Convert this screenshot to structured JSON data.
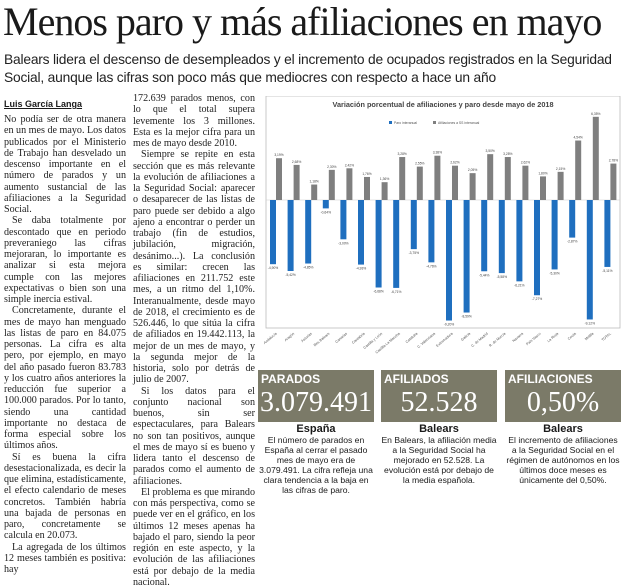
{
  "headline": "Menos paro y más afiliaciones en mayo",
  "subtitle": "Balears lidera el descenso de desempleados y el incremento de ocupados registrados en la Seguridad Social, aunque las cifras son poco más que mediocres con respecto a hace un año",
  "byline": "Luis García Langa",
  "column1": [
    "No podía ser de otra manera en un mes de mayo. Los datos publicados por el Ministerio de Trabajo han desvelado un descenso importante en el número de parados y un aumento sustancial de las afiliaciones a la Seguridad Social.",
    "Se daba totalmente por descontado que en periodo preveraniego las cifras mejoraran, lo importante es analizar si esta mejora cumple con las mejores expectativas o bien son una simple inercia estival.",
    "Concretamente, durante el mes de mayo han menguado las listas de paro en 84.075 personas. La cifra es alta pero, por ejemplo, en mayo del año pasado fueron 83.783 y los cuatro años anteriores la reducción fue superior a 100.000 parados. Por lo tanto, siendo una cantidad importante no destaca de forma especial sobre los últimos años.",
    "Sí es buena la cifra desestacionalizada, es decir la que elimina, estadísticamente, el efecto calendario de meses concretos. También habría una bajada de personas en paro, concretamente se calcula en 20.073.",
    "La agregada de los últimos 12 meses también es positiva: hay"
  ],
  "column2": [
    "172.639 parados menos, con lo que el total supera levemente los 3 millones. Esta es la mejor cifra para un mes de mayo desde 2010.",
    "Siempre se repite en esta sección que es más relevante la evolución de afiliaciones a la Seguridad Social: aparecer o desaparecer de las listas de paro puede ser debido a algo ajeno a encontrar o perder un trabajo (fin de estudios, jubilación, migración, desánimo...). La conclusión es similar: crecen las afiliaciones en 211.752 este mes, a un ritmo del 1,10%. Interanualmente, desde mayo de 2018, el crecimiento es de 526.446, lo que sitúa la cifra de afiliados en 19.442.113, la mejor de un mes de mayo, y la segunda mejor de la historia, solo por detrás de julio de 2007.",
    "Si los datos para el conjunto nacional son buenos, sin ser espectaculares, para Balears no son tan positivos, aunque el mes de mayo sí es bueno y lidera tanto el descenso de parados como el aumento de afiliaciones.",
    "El problema es que mirando con más perspectiva, como se puede ver en el gráfico, en los últimos 12 meses apenas ha bajado el paro, siendo la peor región en este aspecto, y la evolución de las afiliaciones está por debajo de la media nacional."
  ],
  "chart_data": {
    "type": "bar",
    "title": "Variación porcentual de afiliaciones y paro desde mayo de 2018",
    "legend_position": "top",
    "categories": [
      "Andalucía",
      "Aragón",
      "Asturias",
      "Illes Balears",
      "Canarias",
      "Cantabria",
      "Castilla y León",
      "Castilla-La Mancha",
      "Cataluña",
      "C. Valenciana",
      "Extremadura",
      "Galicia",
      "C. de Madrid",
      "R. de Murcia",
      "Navarra",
      "País Vasco",
      "La Rioja",
      "Ceuta",
      "Melilla",
      "TOTAL"
    ],
    "series": [
      {
        "name": "Paro interanual",
        "color": "#1f6fbf",
        "values": [
          -4.9,
          -5.42,
          -4.85,
          -0.64,
          -3.0,
          -4.93,
          -6.68,
          -6.71,
          -3.75,
          -4.76,
          -9.2,
          -8.59,
          -5.44,
          -5.58,
          -6.21,
          -7.27,
          -5.3,
          -2.87,
          -9.12,
          -5.11
        ]
      },
      {
        "name": "Afiliaciones a SS interanual",
        "color": "#7f7f7f",
        "values": [
          3.19,
          2.68,
          1.18,
          2.3,
          2.42,
          1.76,
          1.36,
          3.28,
          2.55,
          3.38,
          2.62,
          2.05,
          3.5,
          3.28,
          2.62,
          1.8,
          2.15,
          4.54,
          6.35,
          2.78
        ]
      }
    ],
    "ylim": [
      -9.6,
      7.9
    ],
    "grid": false
  },
  "stats": [
    {
      "label": "PARADOS",
      "value": "3.079.491",
      "region": "España",
      "desc": "El número de parados en España al cerrar el pasado mes de mayo era de 3.079.491. La cifra refleja una clara tendencia a la baja en las cifras de paro."
    },
    {
      "label": "AFILIADOS",
      "value": "52.528",
      "region": "Balears",
      "desc": "En Balears, la afiliación media a la Seguridad Social ha mejorado en 52.528. La evolución está por debajo de la media española."
    },
    {
      "label": "AFILIACIONES",
      "value": "0,50%",
      "region": "Balears",
      "desc": "El incremento de afiliaciones a la Seguridad Social en el régimen de autónomos en los últimos doce meses es únicamente del 0,50%."
    }
  ]
}
